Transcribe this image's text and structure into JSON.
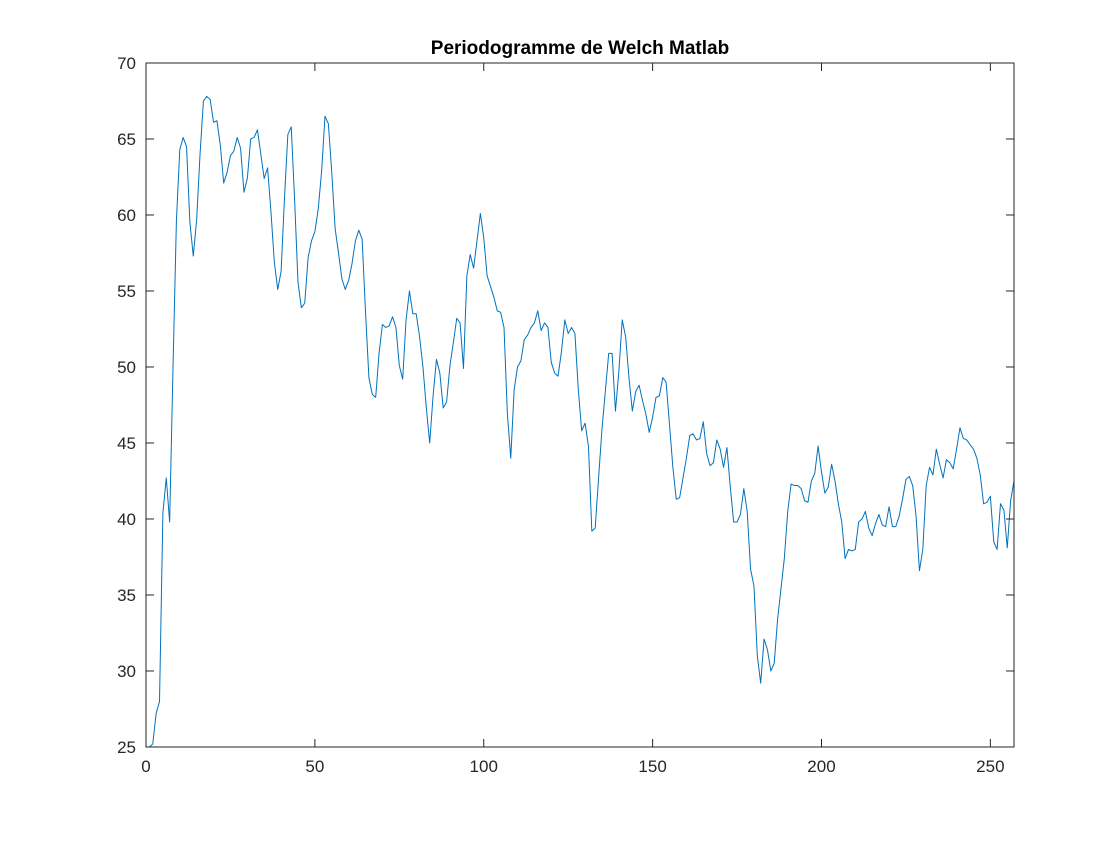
{
  "chart_data": {
    "type": "line",
    "title": "Periodogramme de Welch Matlab",
    "xlabel": "",
    "ylabel": "",
    "xlim": [
      0,
      257
    ],
    "ylim": [
      25,
      70
    ],
    "xticks": [
      0,
      50,
      100,
      150,
      200,
      250
    ],
    "yticks": [
      25,
      30,
      35,
      40,
      45,
      50,
      55,
      60,
      65,
      70
    ],
    "grid": false,
    "legend": "none",
    "line_color": "#0072BD",
    "series": [
      {
        "x": [
          1,
          2,
          3,
          4,
          5,
          6,
          7,
          8,
          9,
          10,
          11,
          12,
          13,
          14,
          15,
          16,
          17,
          18,
          19,
          20,
          21,
          22,
          23,
          24,
          25,
          26,
          27,
          28,
          29,
          30,
          31,
          32,
          33,
          34,
          35,
          36,
          37,
          38,
          39,
          40,
          41,
          42,
          43,
          44,
          45,
          46,
          47,
          48,
          49,
          50,
          51,
          52,
          53,
          54,
          55,
          56,
          57,
          58,
          59,
          60,
          61,
          62,
          63,
          64,
          65,
          66,
          67,
          68,
          69,
          70,
          71,
          72,
          73,
          74,
          75,
          76,
          77,
          78,
          79,
          80,
          81,
          82,
          83,
          84,
          85,
          86,
          87,
          88,
          89,
          90,
          91,
          92,
          93,
          94,
          95,
          96,
          97,
          98,
          99,
          100,
          101,
          102,
          103,
          104,
          105,
          106,
          107,
          108,
          109,
          110,
          111,
          112,
          113,
          114,
          115,
          116,
          117,
          118,
          119,
          120,
          121,
          122,
          123,
          124,
          125,
          126,
          127,
          128,
          129,
          130,
          131,
          132,
          133,
          134,
          135,
          136,
          137,
          138,
          139,
          140,
          141,
          142,
          143,
          144,
          145,
          146,
          147,
          148,
          149,
          150,
          151,
          152,
          153,
          154,
          155,
          156,
          157,
          158,
          159,
          160,
          161,
          162,
          163,
          164,
          165,
          166,
          167,
          168,
          169,
          170,
          171,
          172,
          173,
          174,
          175,
          176,
          177,
          178,
          179,
          180,
          181,
          182,
          183,
          184,
          185,
          186,
          187,
          188,
          189,
          190,
          191,
          192,
          193,
          194,
          195,
          196,
          197,
          198,
          199,
          200,
          201,
          202,
          203,
          204,
          205,
          206,
          207,
          208,
          209,
          210,
          211,
          212,
          213,
          214,
          215,
          216,
          217,
          218,
          219,
          220,
          221,
          222,
          223,
          224,
          225,
          226,
          227,
          228,
          229,
          230,
          231,
          232,
          233,
          234,
          235,
          236,
          237,
          238,
          239,
          240,
          241,
          242,
          243,
          244,
          245,
          246,
          247,
          248,
          249,
          250,
          251,
          252,
          253,
          254,
          255,
          256,
          257
        ],
        "y": [
          25.0,
          25.2,
          27.2,
          28.0,
          40.4,
          42.7,
          39.8,
          50.0,
          59.6,
          64.3,
          65.1,
          64.5,
          59.5,
          57.3,
          59.7,
          64.0,
          67.5,
          67.8,
          67.6,
          66.1,
          66.2,
          64.6,
          62.1,
          62.8,
          63.9,
          64.2,
          65.1,
          64.4,
          61.5,
          62.4,
          65.0,
          65.1,
          65.6,
          64.0,
          62.4,
          63.1,
          60.2,
          56.9,
          55.1,
          56.3,
          61.1,
          65.3,
          65.8,
          61.0,
          55.6,
          53.9,
          54.2,
          57.2,
          58.3,
          58.9,
          60.4,
          62.9,
          66.5,
          66.0,
          62.8,
          59.1,
          57.5,
          55.8,
          55.1,
          55.7,
          56.8,
          58.3,
          59.0,
          58.4,
          53.6,
          49.3,
          48.2,
          48.0,
          50.9,
          52.8,
          52.6,
          52.7,
          53.3,
          52.6,
          50.1,
          49.2,
          53.1,
          55.0,
          53.5,
          53.5,
          52.0,
          50.0,
          47.3,
          45.0,
          48.1,
          50.5,
          49.6,
          47.3,
          47.7,
          50.1,
          51.6,
          53.2,
          52.9,
          49.9,
          56.0,
          57.4,
          56.5,
          58.3,
          60.1,
          58.5,
          56.0,
          55.3,
          54.6,
          53.7,
          53.6,
          52.6,
          46.9,
          44.0,
          48.5,
          50.0,
          50.4,
          51.8,
          52.1,
          52.6,
          52.9,
          53.7,
          52.4,
          52.9,
          52.6,
          50.3,
          49.6,
          49.4,
          51.0,
          53.1,
          52.2,
          52.6,
          52.2,
          48.5,
          45.8,
          46.3,
          44.8,
          39.2,
          39.4,
          42.7,
          45.9,
          48.4,
          50.9,
          50.9,
          47.1,
          49.7,
          53.1,
          52.0,
          49.3,
          47.1,
          48.4,
          48.8,
          47.8,
          46.9,
          45.7,
          46.7,
          48.0,
          48.1,
          49.3,
          49.0,
          46.2,
          43.4,
          41.3,
          41.4,
          42.7,
          44.0,
          45.5,
          45.6,
          45.2,
          45.3,
          46.4,
          44.3,
          43.5,
          43.7,
          45.2,
          44.6,
          43.4,
          44.7,
          42.1,
          39.8,
          39.8,
          40.3,
          42.0,
          40.5,
          36.7,
          35.6,
          31.0,
          29.2,
          32.1,
          31.4,
          30.0,
          30.5,
          33.4,
          35.4,
          37.4,
          40.5,
          42.3,
          42.2,
          42.2,
          42.0,
          41.2,
          41.1,
          42.5,
          43.0,
          44.8,
          43.1,
          41.7,
          42.1,
          43.6,
          42.5,
          41.0,
          39.8,
          37.4,
          38.0,
          37.9,
          38.0,
          39.8,
          40.0,
          40.5,
          39.4,
          38.9,
          39.7,
          40.3,
          39.6,
          39.5,
          40.8,
          39.5,
          39.5,
          40.2,
          41.3,
          42.6,
          42.8,
          42.2,
          40.2,
          36.6,
          38.0,
          42.2,
          43.4,
          42.9,
          44.6,
          43.6,
          42.7,
          43.9,
          43.7,
          43.3,
          44.6,
          46.0,
          45.3,
          45.2,
          44.9,
          44.6,
          44.0,
          42.9,
          41.0,
          41.1,
          41.5,
          38.5,
          38.0,
          41.0,
          40.6,
          38.1,
          41.2,
          42.5
        ]
      }
    ]
  }
}
